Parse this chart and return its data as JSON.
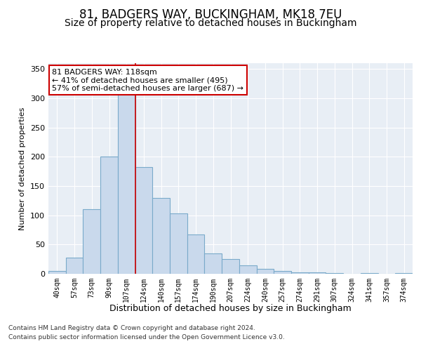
{
  "title1": "81, BADGERS WAY, BUCKINGHAM, MK18 7EU",
  "title2": "Size of property relative to detached houses in Buckingham",
  "xlabel": "Distribution of detached houses by size in Buckingham",
  "ylabel": "Number of detached properties",
  "categories": [
    "40sqm",
    "57sqm",
    "73sqm",
    "90sqm",
    "107sqm",
    "124sqm",
    "140sqm",
    "157sqm",
    "174sqm",
    "190sqm",
    "207sqm",
    "224sqm",
    "240sqm",
    "257sqm",
    "274sqm",
    "291sqm",
    "307sqm",
    "324sqm",
    "341sqm",
    "357sqm",
    "374sqm"
  ],
  "values": [
    5,
    28,
    110,
    200,
    330,
    182,
    130,
    103,
    67,
    35,
    25,
    15,
    8,
    5,
    3,
    3,
    1,
    0,
    1,
    0,
    1
  ],
  "bar_color": "#c9d9ec",
  "bar_edge_color": "#7aaaca",
  "vline_x": 4.5,
  "vline_color": "#cc0000",
  "annotation_title": "81 BADGERS WAY: 118sqm",
  "annotation_line1": "← 41% of detached houses are smaller (495)",
  "annotation_line2": "57% of semi-detached houses are larger (687) →",
  "annotation_box_color": "#ffffff",
  "annotation_box_edge": "#cc0000",
  "ylim": [
    0,
    360
  ],
  "yticks": [
    0,
    50,
    100,
    150,
    200,
    250,
    300,
    350
  ],
  "footer1": "Contains HM Land Registry data © Crown copyright and database right 2024.",
  "footer2": "Contains public sector information licensed under the Open Government Licence v3.0.",
  "plot_bg_color": "#e8eef5",
  "title1_fontsize": 12,
  "title2_fontsize": 10,
  "ylabel_fontsize": 8,
  "xlabel_fontsize": 9,
  "tick_fontsize": 7,
  "footer_fontsize": 6.5,
  "annotation_fontsize": 8
}
